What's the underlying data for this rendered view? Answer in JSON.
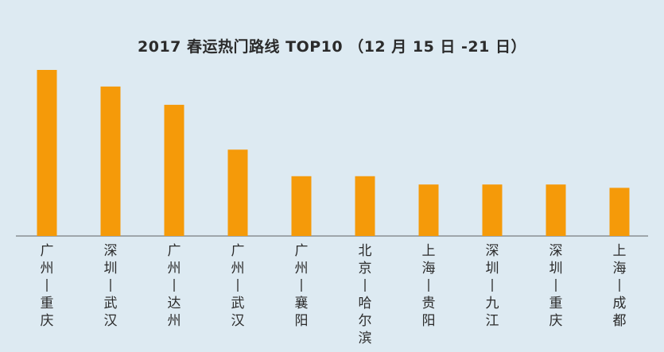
{
  "chart_data": {
    "type": "bar",
    "title": "2017 春运热门路线 TOP10 （12 月 15 日 -21 日）",
    "xlabel": "",
    "ylabel": "",
    "ylim": [
      0,
      100
    ],
    "grid": false,
    "legend": "none",
    "categories": [
      "广州—重庆",
      "深圳—武汉",
      "广州—达州",
      "广州—武汉",
      "广州—襄阳",
      "北京—哈尔滨",
      "上海—贵阳",
      "深圳—九江",
      "深圳—重庆",
      "上海—成都"
    ],
    "values": [
      100,
      90,
      79,
      52,
      36,
      36,
      31,
      31,
      31,
      29
    ],
    "colors": {
      "bar": "#f59a09",
      "axis": "#8a8f93",
      "label": "#2b2b2b",
      "background": "#ddeaf2"
    }
  }
}
